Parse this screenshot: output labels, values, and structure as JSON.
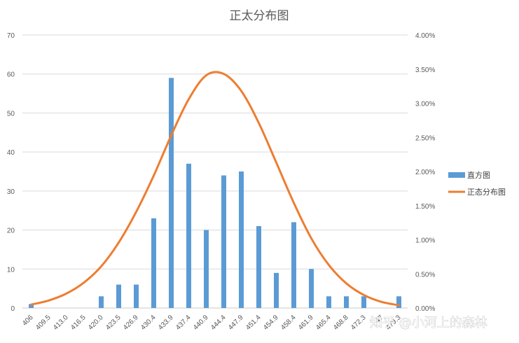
{
  "chart_data": {
    "type": "bar",
    "title": "正太分布图",
    "categories": [
      "406",
      "409.5",
      "413.0",
      "416.5",
      "420.0",
      "423.5",
      "426.9",
      "430.4",
      "433.9",
      "437.4",
      "440.9",
      "444.4",
      "447.9",
      "451.4",
      "454.9",
      "458.4",
      "461.9",
      "465.4",
      "468.8",
      "472.3",
      "475.8",
      "479.3"
    ],
    "x_tick_labels_visible": [
      "406",
      "409.5",
      "413.0",
      "416.5",
      "420.0",
      "423.5",
      "426.9",
      "430.4",
      "433.9",
      "437.4",
      "440.9",
      "444.4",
      "447.9",
      "451.4",
      "454.9",
      "458.4",
      "461.9",
      "465.4",
      "468.8",
      "472.3",
      "47",
      "479.3"
    ],
    "series": [
      {
        "name": "直方图",
        "type": "bar",
        "axis": "left",
        "color": "#5b9bd5",
        "values": [
          1,
          0,
          0,
          0,
          3,
          6,
          6,
          23,
          59,
          37,
          20,
          34,
          35,
          21,
          9,
          22,
          10,
          3,
          3,
          3,
          0,
          3
        ]
      },
      {
        "name": "正态分布图",
        "type": "line",
        "axis": "right",
        "color": "#ed7d31",
        "smooth": true,
        "values": [
          0.0005,
          0.0011,
          0.0021,
          0.0037,
          0.0061,
          0.0096,
          0.0141,
          0.0194,
          0.0253,
          0.0306,
          0.0341,
          0.0343,
          0.0318,
          0.0271,
          0.0213,
          0.0154,
          0.0102,
          0.0063,
          0.0036,
          0.0019,
          0.0009,
          0.0004
        ]
      }
    ],
    "y_left": {
      "ylim": [
        0,
        70
      ],
      "ticks": [
        "0",
        "10",
        "20",
        "30",
        "40",
        "50",
        "60",
        "70"
      ]
    },
    "y_right": {
      "ylim": [
        0,
        0.04
      ],
      "ticks": [
        "0.00%",
        "0.50%",
        "1.00%",
        "1.50%",
        "2.00%",
        "2.50%",
        "3.00%",
        "3.50%",
        "4.00%"
      ]
    },
    "grid": true,
    "legend_position": "right"
  },
  "watermark": {
    "text": "知乎 @小河上的森林"
  }
}
